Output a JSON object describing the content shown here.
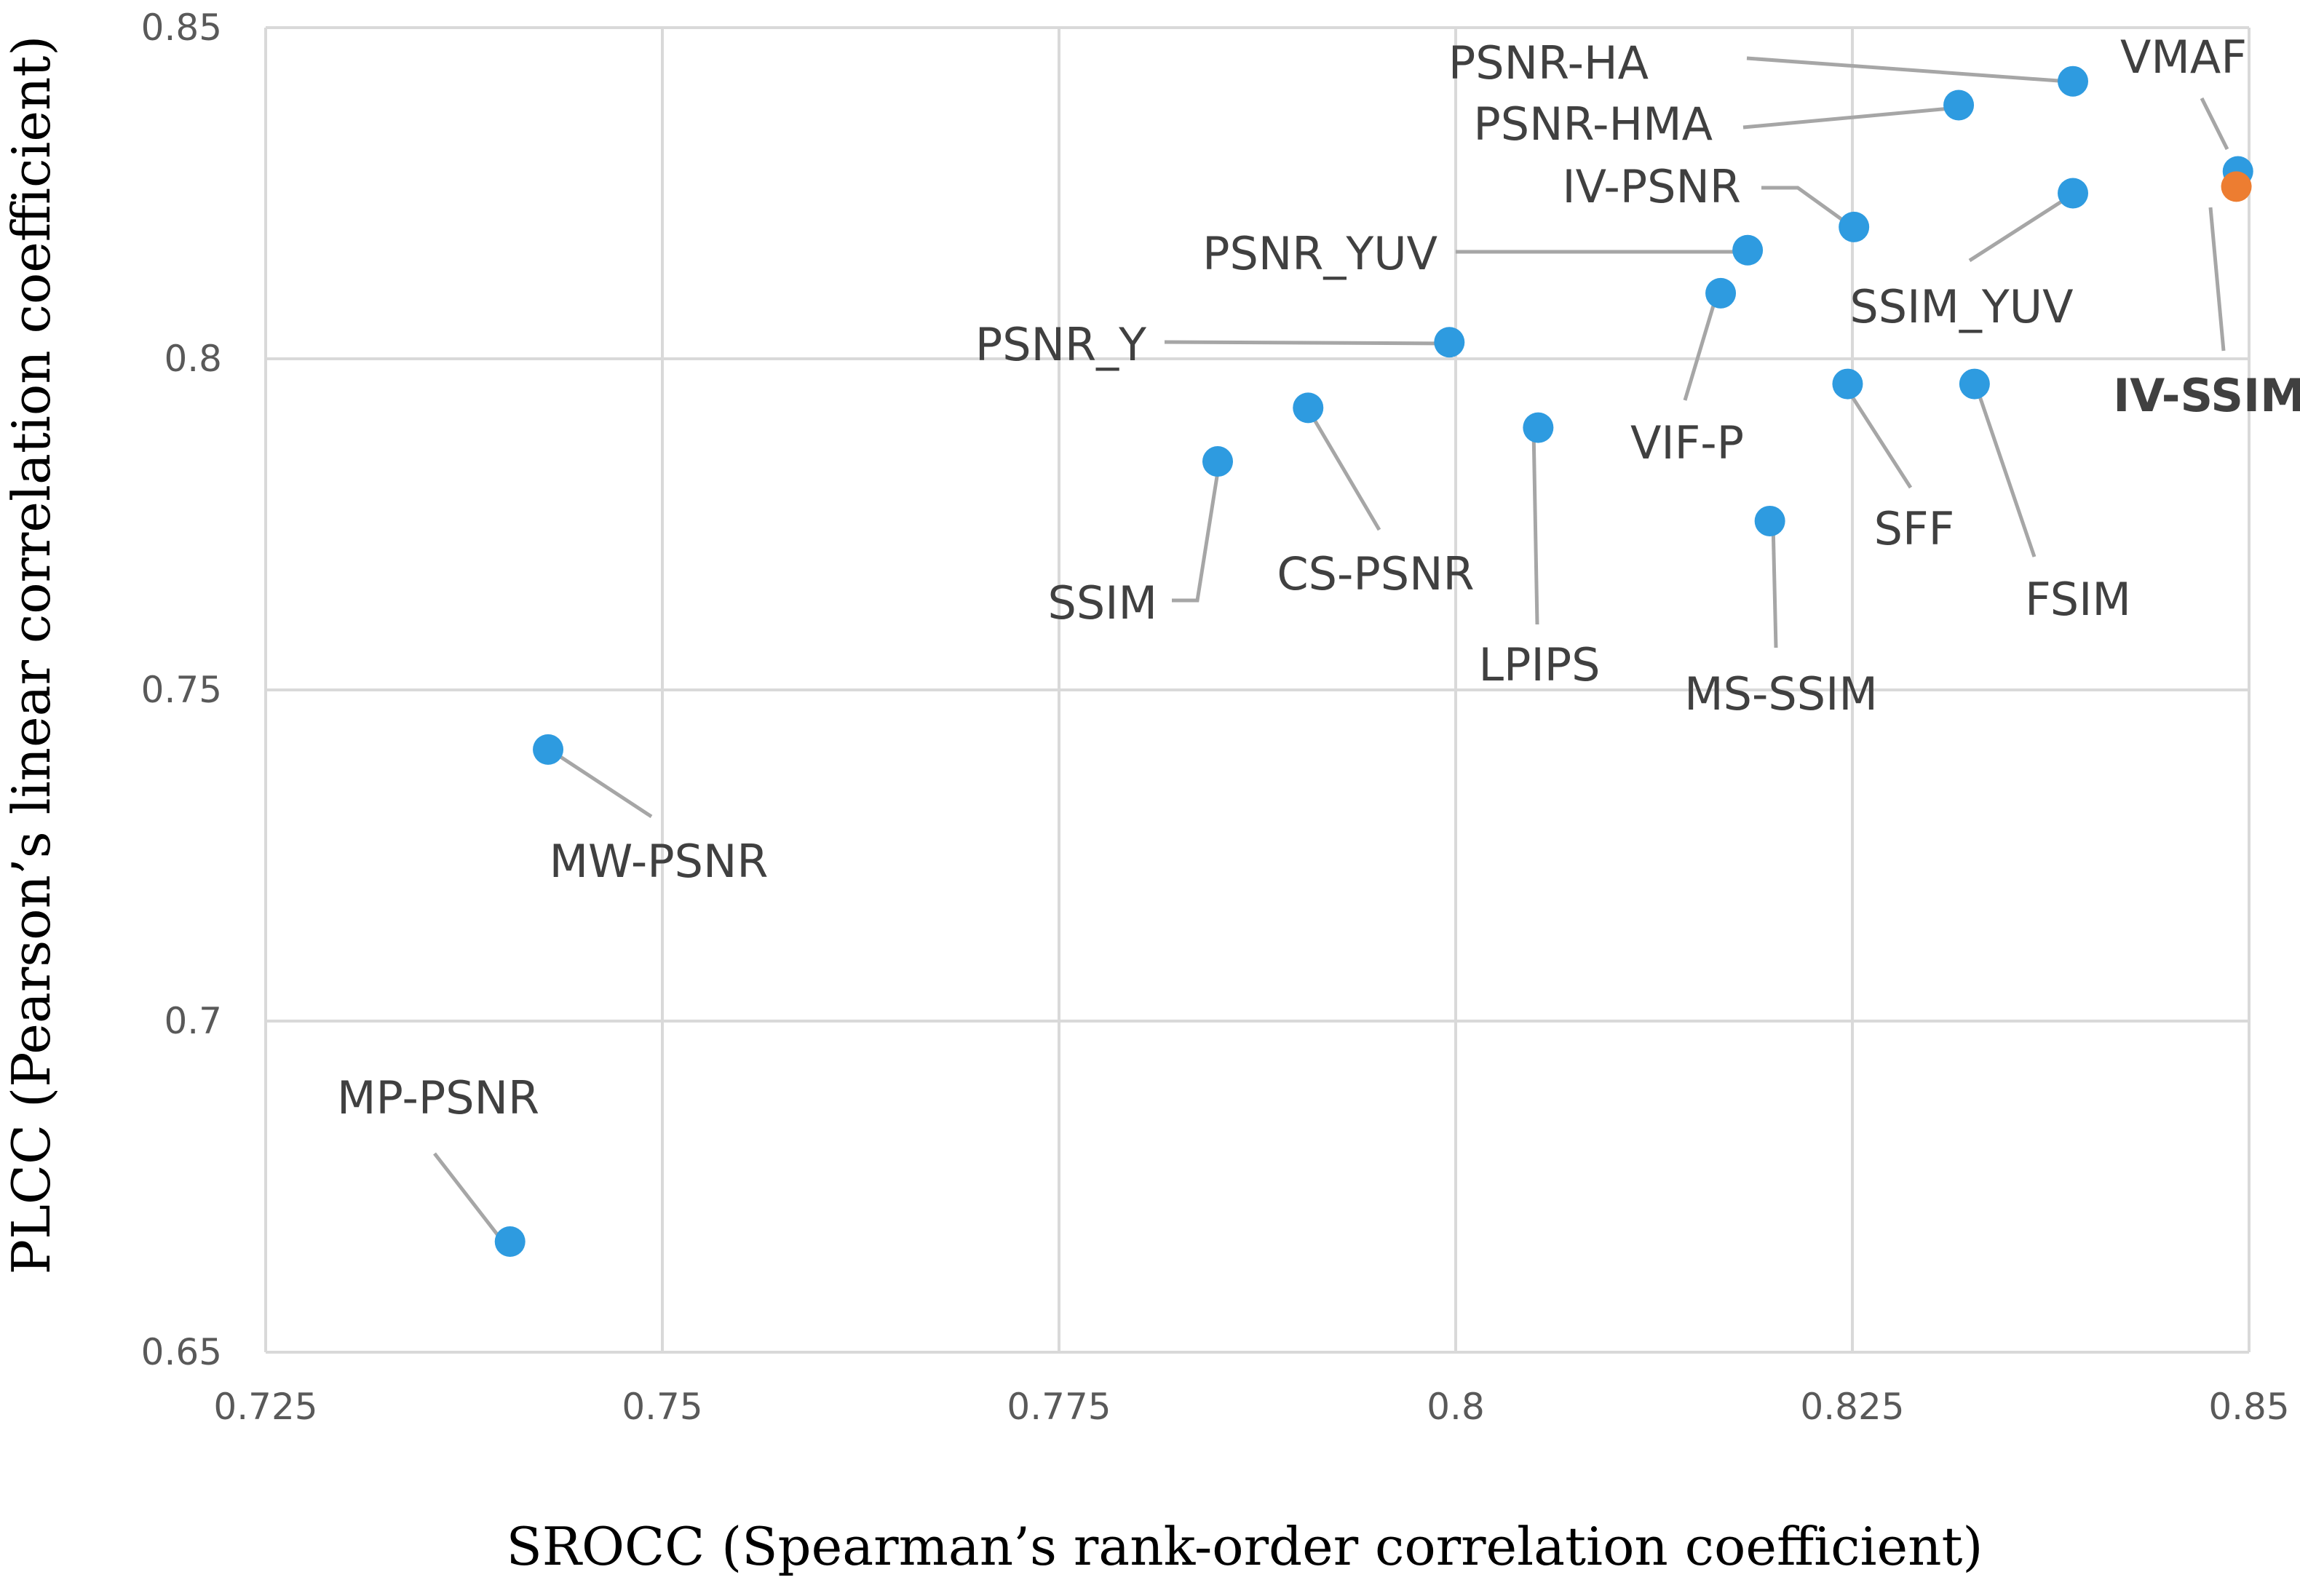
{
  "chart_data": {
    "type": "scatter",
    "title": "",
    "xlabel": "SROCC (Spearman’s rank-order correlation coefficient)",
    "ylabel": "PLCC (Pearson’s linear correlation coefficient)",
    "xlim": [
      0.725,
      0.85
    ],
    "ylim": [
      0.65,
      0.85
    ],
    "x_ticks": [
      "0.725",
      "0.75",
      "0.775",
      "0.8",
      "0.825",
      "0.85"
    ],
    "y_ticks": [
      "0.65",
      "0.7",
      "0.75",
      "0.8",
      "0.85"
    ],
    "grid": true,
    "colors": {
      "default": "#2e9be0",
      "highlight": "#ed7d31"
    },
    "points": [
      {
        "name": "VMAF",
        "x": 0.8493,
        "y": 0.8283,
        "highlight": false,
        "bold": false
      },
      {
        "name": "IV-SSIM",
        "x": 0.8492,
        "y": 0.826,
        "highlight": true,
        "bold": true
      },
      {
        "name": "PSNR-HA",
        "x": 0.8389,
        "y": 0.8419,
        "highlight": false,
        "bold": false
      },
      {
        "name": "PSNR-HMA",
        "x": 0.8317,
        "y": 0.8383,
        "highlight": false,
        "bold": false
      },
      {
        "name": "SSIM_YUV",
        "x": 0.8389,
        "y": 0.825,
        "highlight": false,
        "bold": false
      },
      {
        "name": "IV-PSNR",
        "x": 0.8251,
        "y": 0.8199,
        "highlight": false,
        "bold": false
      },
      {
        "name": "PSNR_YUV",
        "x": 0.8184,
        "y": 0.8164,
        "highlight": false,
        "bold": false
      },
      {
        "name": "VIF-P",
        "x": 0.8167,
        "y": 0.8099,
        "highlight": false,
        "bold": false
      },
      {
        "name": "PSNR_Y",
        "x": 0.7996,
        "y": 0.8025,
        "highlight": false,
        "bold": false
      },
      {
        "name": "SFF",
        "x": 0.8247,
        "y": 0.7962,
        "highlight": false,
        "bold": false
      },
      {
        "name": "FSIM",
        "x": 0.8327,
        "y": 0.7962,
        "highlight": false,
        "bold": false
      },
      {
        "name": "CS-PSNR",
        "x": 0.7907,
        "y": 0.7926,
        "highlight": false,
        "bold": false
      },
      {
        "name": "LPIPS",
        "x": 0.8052,
        "y": 0.7896,
        "highlight": false,
        "bold": false
      },
      {
        "name": "SSIM",
        "x": 0.785,
        "y": 0.7845,
        "highlight": false,
        "bold": false
      },
      {
        "name": "MS-SSIM",
        "x": 0.8198,
        "y": 0.7755,
        "highlight": false,
        "bold": false
      },
      {
        "name": "MW-PSNR",
        "x": 0.7428,
        "y": 0.741,
        "highlight": false,
        "bold": false
      },
      {
        "name": "MP-PSNR",
        "x": 0.7404,
        "y": 0.6667,
        "highlight": false,
        "bold": false
      }
    ]
  }
}
